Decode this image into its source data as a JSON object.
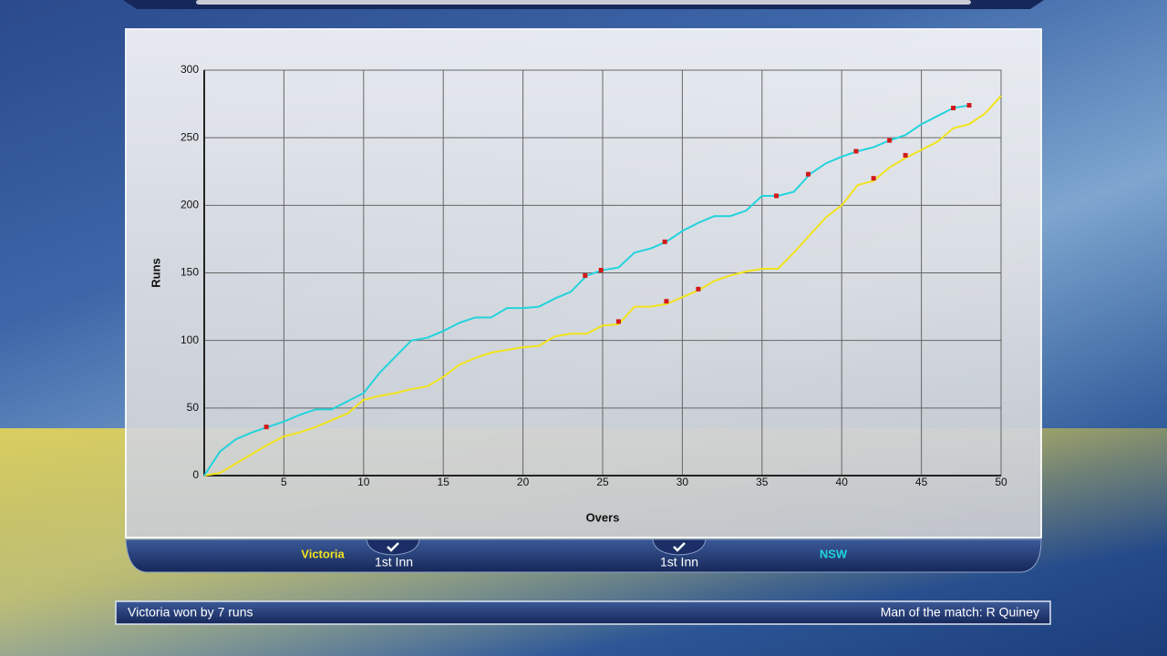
{
  "chart_data": {
    "type": "line",
    "x_label": "Overs",
    "y_label": "Runs",
    "x": [
      0,
      1,
      2,
      3,
      4,
      5,
      6,
      7,
      8,
      9,
      10,
      11,
      12,
      13,
      14,
      15,
      16,
      17,
      18,
      19,
      20,
      21,
      22,
      23,
      24,
      25,
      26,
      27,
      28,
      29,
      30,
      31,
      32,
      33,
      34,
      35,
      36,
      37,
      38,
      39,
      40,
      41,
      42,
      43,
      44,
      45,
      46,
      47,
      48,
      49,
      50
    ],
    "series": [
      {
        "name": "Victoria",
        "color": "#f2e21c",
        "values": [
          0,
          2,
          9,
          16,
          23,
          29,
          32,
          36,
          41,
          46,
          56,
          59,
          61,
          64,
          66,
          73,
          82,
          87,
          91,
          93,
          95,
          96,
          103,
          105,
          105,
          111,
          112,
          125,
          125,
          127,
          132,
          137,
          144,
          148,
          151,
          153,
          153,
          165,
          178,
          191,
          200,
          215,
          218,
          228,
          235,
          241,
          247,
          257,
          260,
          268,
          281
        ],
        "wicket_overs": [
          26,
          29,
          31,
          42,
          44
        ],
        "wicket_runs": [
          114,
          129,
          138,
          220,
          237
        ]
      },
      {
        "name": "NSW",
        "color": "#22d3dc",
        "values": [
          0,
          18,
          27,
          32,
          36,
          40,
          45,
          49,
          49,
          55,
          61,
          76,
          88,
          100,
          102,
          107,
          113,
          117,
          117,
          124,
          124,
          125,
          131,
          136,
          148,
          152,
          154,
          165,
          168,
          173,
          181,
          187,
          192,
          192,
          196,
          207,
          207,
          210,
          223,
          231,
          236,
          240,
          243,
          248,
          252,
          260,
          266,
          272,
          274,
          null,
          null
        ],
        "wicket_overs": [
          3.9,
          23.9,
          24.9,
          28.9,
          35.9,
          37.9,
          40.9,
          43,
          47,
          48
        ],
        "wicket_runs": [
          36,
          148,
          152,
          173,
          207,
          223,
          240,
          248,
          272,
          274
        ]
      }
    ],
    "wicket_color": "#d21a1a",
    "xlim": [
      0,
      50
    ],
    "xticks": [
      5,
      10,
      15,
      20,
      25,
      30,
      35,
      40,
      45,
      50
    ],
    "ylim": [
      0,
      300
    ],
    "yticks": [
      0,
      50,
      100,
      150,
      200,
      250,
      300
    ],
    "grid": true
  },
  "tabs": [
    "1st Inn",
    "1st Inn"
  ],
  "status": {
    "result": "Victoria won by 7 runs",
    "award": "Man of the match: R Quiney"
  }
}
